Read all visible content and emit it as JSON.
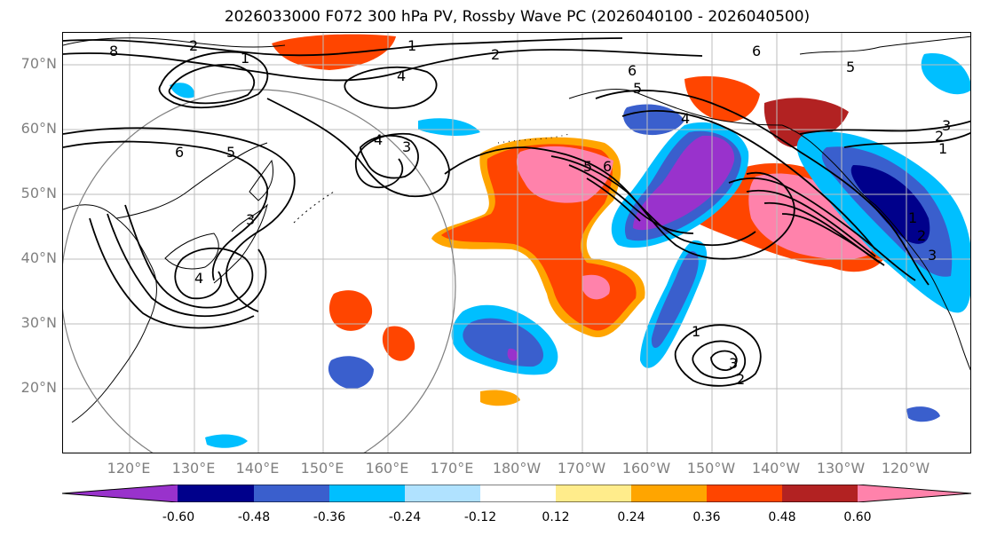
{
  "title": "2026033000 F072 300 hPa PV, Rossby Wave PC (2026040100 - 2026040500)",
  "lat_labels": [
    "70°N",
    "60°N",
    "50°N",
    "40°N",
    "30°N",
    "20°N"
  ],
  "lon_labels": [
    "120°E",
    "130°E",
    "140°E",
    "150°E",
    "160°E",
    "170°E",
    "180°W",
    "170°W",
    "160°W",
    "150°W",
    "140°W",
    "130°W",
    "120°W"
  ],
  "colorbar": {
    "colors": [
      "#9932cc",
      "#00008b",
      "#3a5fcd",
      "#00bfff",
      "#b0e2ff",
      "#ffffff",
      "#ffec8b",
      "#ffa500",
      "#ff4500",
      "#b22222",
      "#ff82ab"
    ],
    "tick_labels": [
      "-0.60",
      "-0.48",
      "-0.36",
      "-0.24",
      "-0.12",
      "0.12",
      "0.24",
      "0.36",
      "0.48",
      "0.60"
    ]
  },
  "contour_labels": [
    "1",
    "2",
    "6",
    "5",
    "4",
    "8",
    "6",
    "5",
    "4",
    "3",
    "6",
    "5",
    "4",
    "1",
    "2",
    "3",
    "6",
    "5",
    "4",
    "3",
    "1",
    "2",
    "1",
    "3",
    "2",
    "1",
    "2",
    "3"
  ]
}
